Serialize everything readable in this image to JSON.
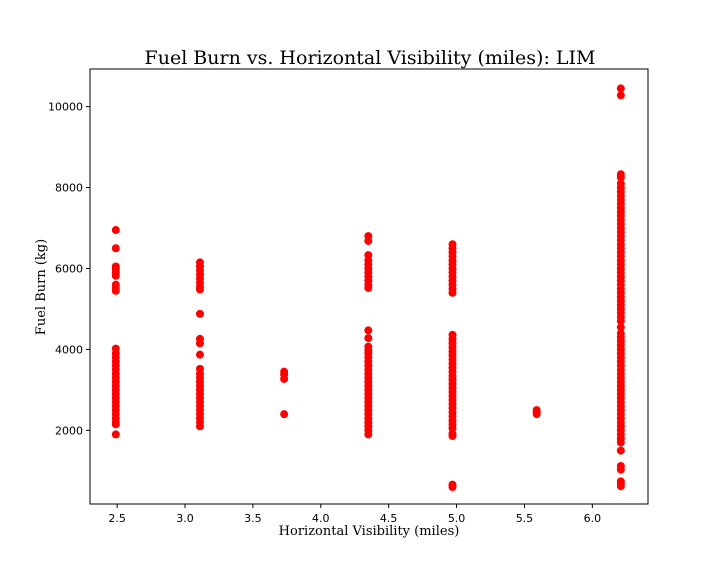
{
  "chart_data": {
    "type": "scatter",
    "title": "Fuel Burn vs. Horizontal Visibility (miles): LIM",
    "xlabel": "Horizontal Visibility (miles)",
    "ylabel": "Fuel Burn (kg)",
    "xlim": [
      2.3,
      6.41
    ],
    "ylim": [
      180,
      10930
    ],
    "xticks": [
      2.5,
      3.0,
      3.5,
      4.0,
      4.5,
      5.0,
      5.5,
      6.0
    ],
    "xtick_labels": [
      "2.5",
      "3.0",
      "3.5",
      "4.0",
      "4.5",
      "5.0",
      "5.5",
      "6.0"
    ],
    "yticks": [
      2000,
      4000,
      6000,
      8000,
      10000
    ],
    "ytick_labels": [
      "2000",
      "4000",
      "6000",
      "8000",
      "10000"
    ],
    "grid": false,
    "marker_color": "#ff0000",
    "series": [
      {
        "points": [
          [
            2.49,
            6950
          ],
          [
            2.49,
            6500
          ],
          [
            2.49,
            6050
          ],
          [
            2.49,
            5980
          ],
          [
            2.49,
            5900
          ],
          [
            2.49,
            5820
          ],
          [
            2.49,
            5600
          ],
          [
            2.49,
            5520
          ],
          [
            2.49,
            5450
          ],
          [
            2.49,
            4020
          ],
          [
            2.49,
            3900
          ],
          [
            2.49,
            3800
          ],
          [
            2.49,
            3700
          ],
          [
            2.49,
            3600
          ],
          [
            2.49,
            3500
          ],
          [
            2.49,
            3400
          ],
          [
            2.49,
            3300
          ],
          [
            2.49,
            3200
          ],
          [
            2.49,
            3100
          ],
          [
            2.49,
            3000
          ],
          [
            2.49,
            2900
          ],
          [
            2.49,
            2800
          ],
          [
            2.49,
            2700
          ],
          [
            2.49,
            2600
          ],
          [
            2.49,
            2500
          ],
          [
            2.49,
            2400
          ],
          [
            2.49,
            2300
          ],
          [
            2.49,
            2200
          ],
          [
            2.49,
            2150
          ],
          [
            2.49,
            1900
          ],
          [
            3.11,
            6150
          ],
          [
            3.11,
            6050
          ],
          [
            3.11,
            5950
          ],
          [
            3.11,
            5850
          ],
          [
            3.11,
            5750
          ],
          [
            3.11,
            5650
          ],
          [
            3.11,
            5550
          ],
          [
            3.11,
            5480
          ],
          [
            3.11,
            4880
          ],
          [
            3.11,
            4260
          ],
          [
            3.11,
            4150
          ],
          [
            3.11,
            3870
          ],
          [
            3.11,
            3520
          ],
          [
            3.11,
            3400
          ],
          [
            3.11,
            3300
          ],
          [
            3.11,
            3200
          ],
          [
            3.11,
            3100
          ],
          [
            3.11,
            3000
          ],
          [
            3.11,
            2900
          ],
          [
            3.11,
            2800
          ],
          [
            3.11,
            2700
          ],
          [
            3.11,
            2600
          ],
          [
            3.11,
            2500
          ],
          [
            3.11,
            2400
          ],
          [
            3.11,
            2300
          ],
          [
            3.11,
            2200
          ],
          [
            3.11,
            2100
          ],
          [
            3.73,
            3450
          ],
          [
            3.73,
            3380
          ],
          [
            3.73,
            3270
          ],
          [
            3.73,
            2400
          ],
          [
            4.35,
            6800
          ],
          [
            4.35,
            6680
          ],
          [
            4.35,
            6330
          ],
          [
            4.35,
            6200
          ],
          [
            4.35,
            6100
          ],
          [
            4.35,
            6000
          ],
          [
            4.35,
            5900
          ],
          [
            4.35,
            5800
          ],
          [
            4.35,
            5700
          ],
          [
            4.35,
            5600
          ],
          [
            4.35,
            5520
          ],
          [
            4.35,
            4470
          ],
          [
            4.35,
            4280
          ],
          [
            4.35,
            4070
          ],
          [
            4.35,
            3980
          ],
          [
            4.35,
            3900
          ],
          [
            4.35,
            3800
          ],
          [
            4.35,
            3700
          ],
          [
            4.35,
            3600
          ],
          [
            4.35,
            3500
          ],
          [
            4.35,
            3400
          ],
          [
            4.35,
            3300
          ],
          [
            4.35,
            3200
          ],
          [
            4.35,
            3100
          ],
          [
            4.35,
            3000
          ],
          [
            4.35,
            2900
          ],
          [
            4.35,
            2800
          ],
          [
            4.35,
            2700
          ],
          [
            4.35,
            2600
          ],
          [
            4.35,
            2500
          ],
          [
            4.35,
            2400
          ],
          [
            4.35,
            2300
          ],
          [
            4.35,
            2200
          ],
          [
            4.35,
            2100
          ],
          [
            4.35,
            2000
          ],
          [
            4.35,
            1900
          ],
          [
            4.97,
            6600
          ],
          [
            4.97,
            6500
          ],
          [
            4.97,
            6400
          ],
          [
            4.97,
            6300
          ],
          [
            4.97,
            6200
          ],
          [
            4.97,
            6100
          ],
          [
            4.97,
            6000
          ],
          [
            4.97,
            5900
          ],
          [
            4.97,
            5800
          ],
          [
            4.97,
            5700
          ],
          [
            4.97,
            5600
          ],
          [
            4.97,
            5500
          ],
          [
            4.97,
            5400
          ],
          [
            4.97,
            4360
          ],
          [
            4.97,
            4250
          ],
          [
            4.97,
            4150
          ],
          [
            4.97,
            4050
          ],
          [
            4.97,
            3950
          ],
          [
            4.97,
            3850
          ],
          [
            4.97,
            3750
          ],
          [
            4.97,
            3650
          ],
          [
            4.97,
            3550
          ],
          [
            4.97,
            3450
          ],
          [
            4.97,
            3350
          ],
          [
            4.97,
            3250
          ],
          [
            4.97,
            3150
          ],
          [
            4.97,
            3050
          ],
          [
            4.97,
            2950
          ],
          [
            4.97,
            2850
          ],
          [
            4.97,
            2750
          ],
          [
            4.97,
            2650
          ],
          [
            4.97,
            2550
          ],
          [
            4.97,
            2450
          ],
          [
            4.97,
            2350
          ],
          [
            4.97,
            2250
          ],
          [
            4.97,
            2150
          ],
          [
            4.97,
            2050
          ],
          [
            4.97,
            1920
          ],
          [
            4.97,
            1860
          ],
          [
            4.97,
            660
          ],
          [
            4.97,
            600
          ],
          [
            5.59,
            2500
          ],
          [
            5.59,
            2450
          ],
          [
            5.59,
            2400
          ],
          [
            6.21,
            10450
          ],
          [
            6.21,
            10280
          ],
          [
            6.21,
            8330
          ],
          [
            6.21,
            8250
          ],
          [
            6.21,
            8100
          ],
          [
            6.21,
            8000
          ],
          [
            6.21,
            7900
          ],
          [
            6.21,
            7800
          ],
          [
            6.21,
            7700
          ],
          [
            6.21,
            7600
          ],
          [
            6.21,
            7500
          ],
          [
            6.21,
            7400
          ],
          [
            6.21,
            7300
          ],
          [
            6.21,
            7200
          ],
          [
            6.21,
            7100
          ],
          [
            6.21,
            7000
          ],
          [
            6.21,
            6900
          ],
          [
            6.21,
            6800
          ],
          [
            6.21,
            6700
          ],
          [
            6.21,
            6600
          ],
          [
            6.21,
            6500
          ],
          [
            6.21,
            6400
          ],
          [
            6.21,
            6300
          ],
          [
            6.21,
            6200
          ],
          [
            6.21,
            6100
          ],
          [
            6.21,
            6000
          ],
          [
            6.21,
            5900
          ],
          [
            6.21,
            5800
          ],
          [
            6.21,
            5700
          ],
          [
            6.21,
            5600
          ],
          [
            6.21,
            5500
          ],
          [
            6.21,
            5400
          ],
          [
            6.21,
            5300
          ],
          [
            6.21,
            5200
          ],
          [
            6.21,
            5100
          ],
          [
            6.21,
            5000
          ],
          [
            6.21,
            4900
          ],
          [
            6.21,
            4800
          ],
          [
            6.21,
            4700
          ],
          [
            6.21,
            4550
          ],
          [
            6.21,
            4400
          ],
          [
            6.21,
            4300
          ],
          [
            6.21,
            4200
          ],
          [
            6.21,
            4100
          ],
          [
            6.21,
            4000
          ],
          [
            6.21,
            3900
          ],
          [
            6.21,
            3800
          ],
          [
            6.21,
            3700
          ],
          [
            6.21,
            3600
          ],
          [
            6.21,
            3500
          ],
          [
            6.21,
            3400
          ],
          [
            6.21,
            3300
          ],
          [
            6.21,
            3200
          ],
          [
            6.21,
            3100
          ],
          [
            6.21,
            3000
          ],
          [
            6.21,
            2900
          ],
          [
            6.21,
            2800
          ],
          [
            6.21,
            2700
          ],
          [
            6.21,
            2600
          ],
          [
            6.21,
            2500
          ],
          [
            6.21,
            2400
          ],
          [
            6.21,
            2300
          ],
          [
            6.21,
            2200
          ],
          [
            6.21,
            2100
          ],
          [
            6.21,
            2000
          ],
          [
            6.21,
            1900
          ],
          [
            6.21,
            1800
          ],
          [
            6.21,
            1700
          ],
          [
            6.21,
            1500
          ],
          [
            6.21,
            1120
          ],
          [
            6.21,
            1030
          ],
          [
            6.21,
            740
          ],
          [
            6.21,
            680
          ],
          [
            6.21,
            620
          ]
        ]
      }
    ]
  }
}
